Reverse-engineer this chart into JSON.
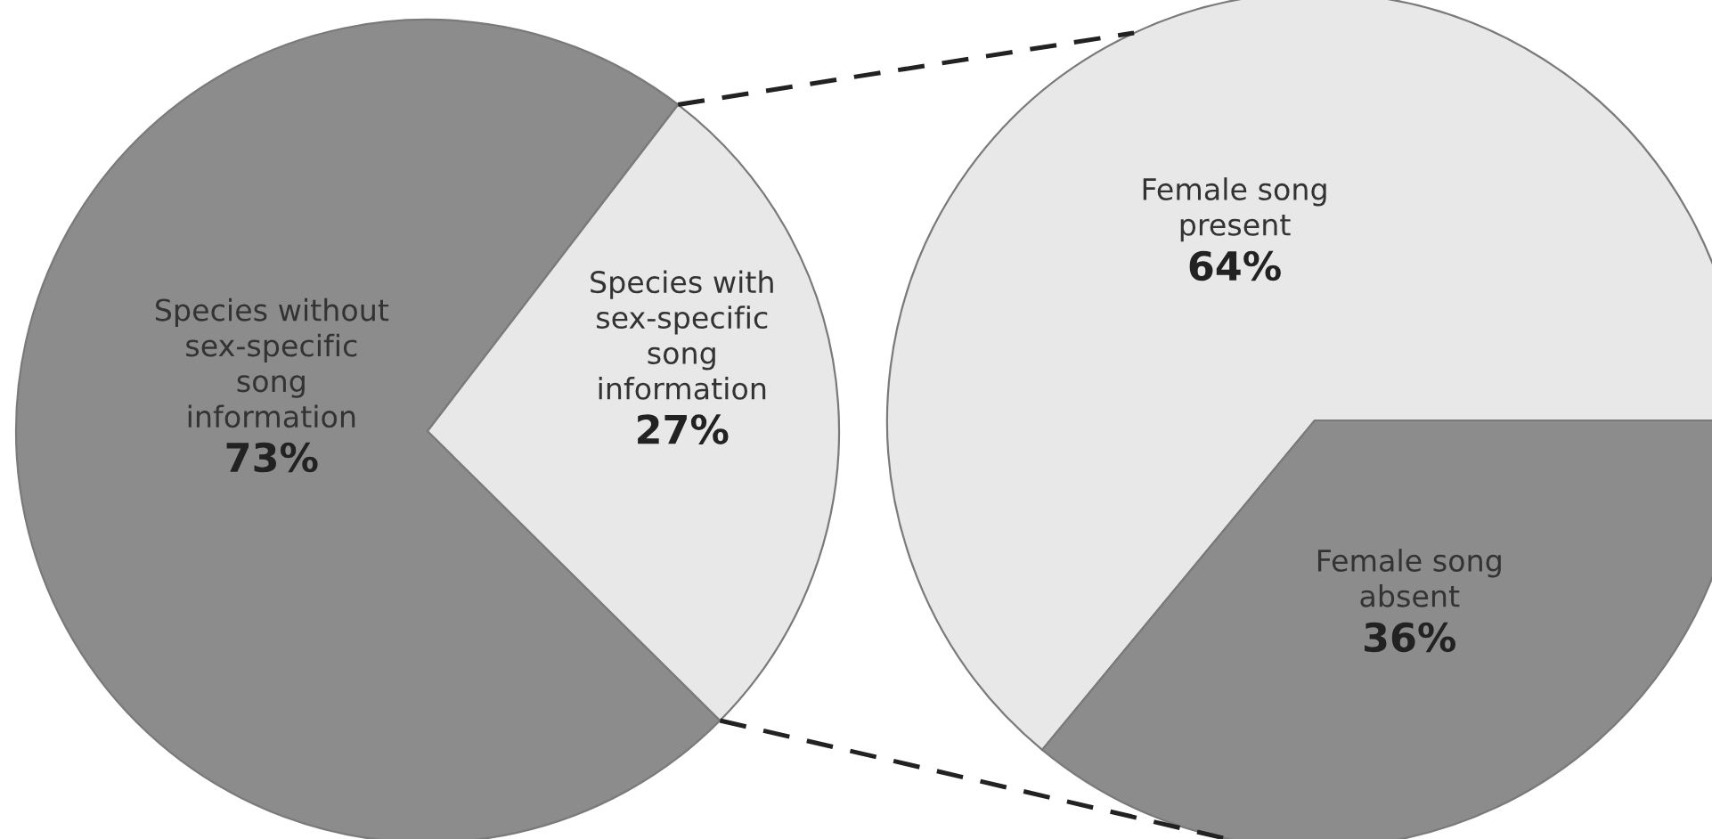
{
  "chart_data": [
    {
      "type": "pie",
      "categories": [
        "Species without\nsex-specific\nsong\ninformation",
        "Species with\nsex-specific\nsong\ninformation"
      ],
      "values": [
        73,
        27
      ],
      "colors": [
        "#8c8c8c",
        "#e8e8e8"
      ],
      "value_labels": [
        "73%",
        "27%"
      ]
    },
    {
      "type": "pie",
      "categories": [
        "Female song\npresent",
        "Female song\nabsent"
      ],
      "values": [
        64,
        36
      ],
      "colors": [
        "#e8e8e8",
        "#8c8c8c"
      ],
      "value_labels": [
        "64%",
        "36%"
      ]
    }
  ]
}
